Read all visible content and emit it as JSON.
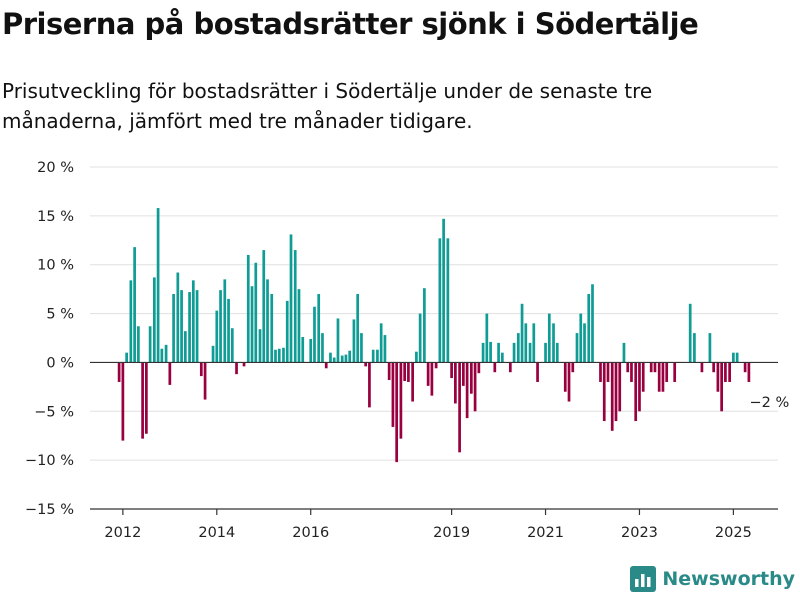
{
  "title": "Priserna på bostadsrätter sjönk i Södertälje",
  "subtitle": "Prisutveckling för bostadsrätter i Södertälje under de senaste tre månaderna, jämfört med tre månader tidigare.",
  "brand": "Newsworthy",
  "colors": {
    "positive": "#0f9c94",
    "negative": "#99003f",
    "grid": "#e0e0e0",
    "brand": "#2a8a88"
  },
  "chart_data": {
    "type": "bar",
    "title": "Priserna på bostadsrätter sjönk i Södertälje",
    "subtitle": "Prisutveckling för bostadsrätter i Södertälje under de senaste tre månaderna, jämfört med tre månader tidigare.",
    "xlabel": "",
    "ylabel": "",
    "unit": "%",
    "ylim": [
      -15,
      20
    ],
    "yticks": [
      -15,
      -10,
      -5,
      0,
      5,
      10,
      15,
      20
    ],
    "ytick_labels": [
      "−15 %",
      "−10 %",
      "−5 %",
      "0 %",
      "5 %",
      "10 %",
      "15 %",
      "20 %"
    ],
    "xtick_labels": [
      "2012",
      "2014",
      "2016",
      "2019",
      "2021",
      "2023",
      "2025"
    ],
    "xticks": [
      2012.0,
      2014.0,
      2016.0,
      2019.0,
      2021.0,
      2023.0,
      2025.0
    ],
    "grid": true,
    "legend": "none",
    "annotation": {
      "text": "−2 %",
      "x": 2025.3,
      "y": -2
    },
    "x": [
      2011.92,
      2012.0,
      2012.08,
      2012.17,
      2012.25,
      2012.33,
      2012.42,
      2012.5,
      2012.58,
      2012.67,
      2012.75,
      2012.83,
      2012.92,
      2013.0,
      2013.08,
      2013.17,
      2013.25,
      2013.33,
      2013.42,
      2013.5,
      2013.58,
      2013.67,
      2013.75,
      2013.83,
      2013.92,
      2014.0,
      2014.08,
      2014.17,
      2014.25,
      2014.33,
      2014.42,
      2014.5,
      2014.58,
      2014.67,
      2014.75,
      2014.83,
      2014.92,
      2015.0,
      2015.08,
      2015.17,
      2015.25,
      2015.33,
      2015.42,
      2015.5,
      2015.58,
      2015.67,
      2015.75,
      2015.83,
      2015.92,
      2016.0,
      2016.08,
      2016.17,
      2016.25,
      2016.33,
      2016.42,
      2016.5,
      2016.58,
      2016.67,
      2016.75,
      2016.83,
      2016.92,
      2017.0,
      2017.08,
      2017.17,
      2017.25,
      2017.33,
      2017.42,
      2017.5,
      2017.58,
      2017.67,
      2017.75,
      2017.83,
      2017.92,
      2018.0,
      2018.08,
      2018.17,
      2018.25,
      2018.33,
      2018.42,
      2018.5,
      2018.58,
      2018.67,
      2018.75,
      2018.83,
      2018.92,
      2019.0,
      2019.08,
      2019.17,
      2019.25,
      2019.33,
      2019.42,
      2019.5,
      2019.58,
      2019.67,
      2019.75,
      2019.83,
      2019.92,
      2020.0,
      2020.08,
      2020.17,
      2020.25,
      2020.33,
      2020.42,
      2020.5,
      2020.58,
      2020.67,
      2020.75,
      2020.83,
      2020.92,
      2021.0,
      2021.08,
      2021.17,
      2021.25,
      2021.33,
      2021.42,
      2021.5,
      2021.58,
      2021.67,
      2021.75,
      2021.83,
      2021.92,
      2022.0,
      2022.08,
      2022.17,
      2022.25,
      2022.33,
      2022.42,
      2022.5,
      2022.58,
      2022.67,
      2022.75,
      2022.83,
      2022.92,
      2023.0,
      2023.08,
      2023.17,
      2023.25,
      2023.33,
      2023.42,
      2023.5,
      2023.58,
      2023.67,
      2023.75,
      2023.83,
      2023.92,
      2024.0,
      2024.08,
      2024.17,
      2024.25,
      2024.33,
      2024.42,
      2024.5,
      2024.58,
      2024.67,
      2024.75,
      2024.83,
      2024.92,
      2025.0,
      2025.08,
      2025.17,
      2025.25,
      2025.33
    ],
    "values": [
      -2,
      -8,
      1,
      8.4,
      11.8,
      3.7,
      -7.8,
      -7.3,
      3.7,
      8.7,
      15.8,
      1.4,
      1.8,
      -2.3,
      7,
      9.2,
      7.4,
      3.2,
      7.2,
      8.4,
      7.4,
      -1.4,
      -3.8,
      0,
      1.7,
      5.3,
      7.4,
      8.5,
      6.5,
      3.5,
      -1.2,
      0,
      -0.4,
      11,
      7.8,
      10.2,
      3.4,
      11.5,
      8.5,
      7,
      1.3,
      1.4,
      1.5,
      6.3,
      13.1,
      11.5,
      7.5,
      2.6,
      0,
      2.4,
      5.7,
      7,
      3,
      -0.6,
      1,
      0.5,
      4.5,
      0.7,
      0.8,
      1.2,
      4.4,
      7,
      3,
      -0.4,
      -4.6,
      1.3,
      1.3,
      4,
      2.8,
      -1.8,
      -6.6,
      -10.2,
      -7.8,
      -1.9,
      -2,
      -4,
      1.1,
      5,
      7.6,
      -2.4,
      -3.4,
      -0.6,
      12.7,
      14.7,
      12.7,
      -1.6,
      -4.2,
      -9.2,
      -2.4,
      -5.7,
      -3.2,
      -5,
      -1.1,
      2,
      5,
      2.1,
      -1,
      2,
      1,
      0,
      -1,
      2,
      3,
      6,
      4,
      2,
      4,
      -2,
      0,
      2,
      5,
      4,
      2,
      0,
      -3,
      -4,
      -1,
      3,
      5,
      4,
      7,
      8,
      0,
      -2,
      -6,
      -2,
      -7,
      -6,
      -5,
      2,
      -1,
      -2,
      -6,
      -5,
      -3,
      0,
      -1,
      -1,
      -3,
      -3,
      -2,
      0,
      -2,
      0,
      0,
      0,
      6,
      3,
      0,
      -1,
      0,
      3,
      -1,
      -3,
      -5,
      -2,
      -2,
      1,
      1,
      0,
      -1,
      -2
    ]
  }
}
